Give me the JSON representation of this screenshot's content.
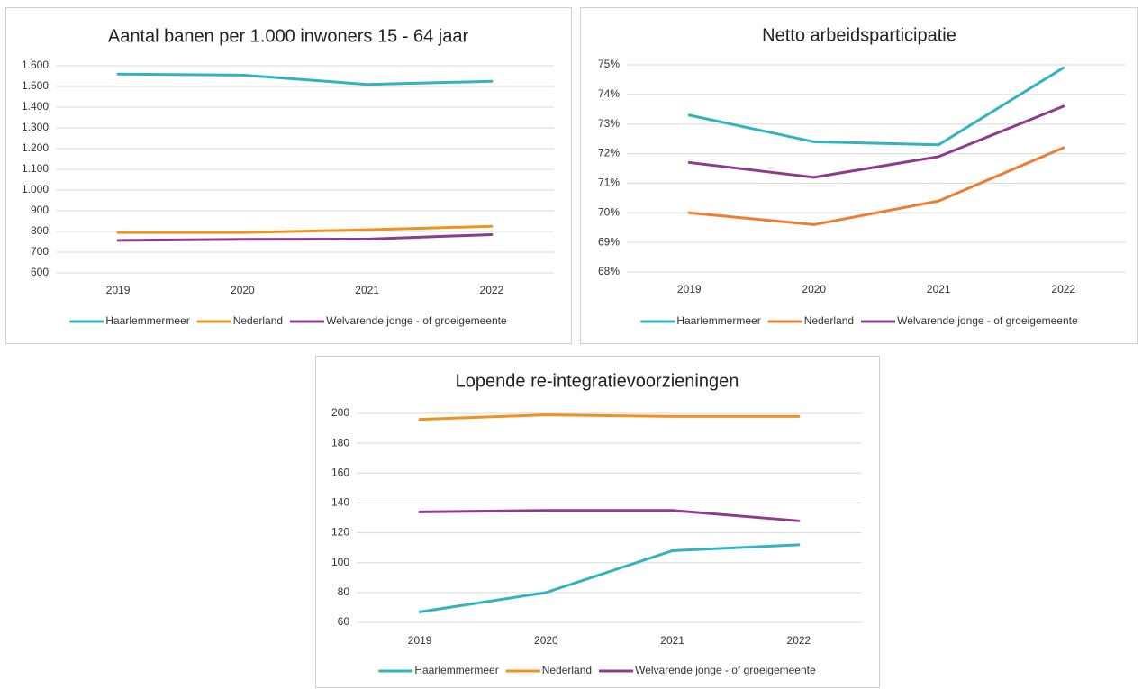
{
  "chart_data": [
    {
      "type": "line",
      "title": "Aantal banen per 1.000 inwoners 15 - 64 jaar",
      "categories": [
        "2019",
        "2020",
        "2021",
        "2022"
      ],
      "series": [
        {
          "name": "Haarlemmermeer",
          "color": "#31b4c0",
          "values": [
            1560,
            1555,
            1510,
            1525
          ]
        },
        {
          "name": "Nederland",
          "color": "#f0921e",
          "values": [
            795,
            795,
            808,
            825
          ]
        },
        {
          "name": "Welvarende jonge - of groeigemeente",
          "color": "#8e3b8e",
          "values": [
            757,
            762,
            763,
            785
          ]
        }
      ],
      "ylim": [
        600,
        1600
      ],
      "yticks": [
        600,
        700,
        800,
        900,
        {
          "value": 1000,
          "label": "1.000"
        },
        {
          "value": 1100,
          "label": "1.100"
        },
        {
          "value": 1200,
          "label": "1.200"
        },
        {
          "value": 1300,
          "label": "1.300"
        },
        {
          "value": 1400,
          "label": "1.400"
        },
        {
          "value": 1500,
          "label": "1.500"
        },
        {
          "value": 1600,
          "label": "1.600"
        }
      ],
      "grid": true,
      "legend": "bottom"
    },
    {
      "type": "line",
      "title": "Netto arbeidsparticipatie",
      "categories": [
        "2019",
        "2020",
        "2021",
        "2022"
      ],
      "series": [
        {
          "name": "Haarlemmermeer",
          "color": "#31b4c0",
          "values": [
            73.3,
            72.4,
            72.3,
            74.9
          ]
        },
        {
          "name": "Nederland",
          "color": "#ed7d31",
          "values": [
            70.0,
            69.6,
            70.4,
            72.2
          ]
        },
        {
          "name": "Welvarende jonge - of groeigemeente",
          "color": "#8e3b8e",
          "values": [
            71.7,
            71.2,
            71.9,
            73.6
          ]
        }
      ],
      "ylim": [
        68,
        75
      ],
      "yticks": [
        {
          "value": 68,
          "label": "68%"
        },
        {
          "value": 69,
          "label": "69%"
        },
        {
          "value": 70,
          "label": "70%"
        },
        {
          "value": 71,
          "label": "71%"
        },
        {
          "value": 72,
          "label": "72%"
        },
        {
          "value": 73,
          "label": "73%"
        },
        {
          "value": 74,
          "label": "74%"
        },
        {
          "value": 75,
          "label": "75%"
        }
      ],
      "grid": true,
      "legend": "bottom"
    },
    {
      "type": "line",
      "title": "Lopende re-integratievoorzieningen",
      "categories": [
        "2019",
        "2020",
        "2021",
        "2022"
      ],
      "series": [
        {
          "name": "Haarlemmermeer",
          "color": "#31b4c0",
          "values": [
            67,
            80,
            108,
            112
          ]
        },
        {
          "name": "Nederland",
          "color": "#f0921e",
          "values": [
            196,
            199,
            198,
            198
          ]
        },
        {
          "name": "Welvarende jonge - of groeigemeente",
          "color": "#8e3b8e",
          "values": [
            134,
            135,
            135,
            128
          ]
        }
      ],
      "ylim": [
        60,
        200
      ],
      "yticks": [
        60,
        80,
        100,
        120,
        140,
        160,
        180,
        200
      ],
      "grid": true,
      "legend": "bottom"
    }
  ]
}
